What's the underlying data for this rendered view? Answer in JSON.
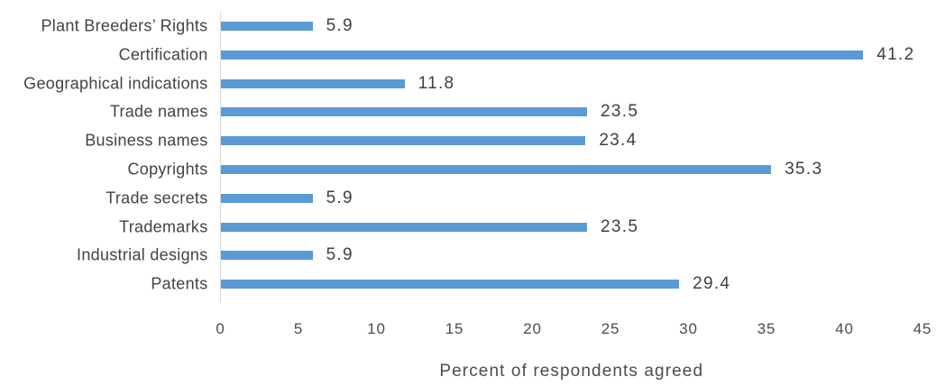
{
  "chart_data": {
    "type": "bar",
    "orientation": "horizontal",
    "categories": [
      "Plant Breeders’ Rights",
      "Certification",
      "Geographical indications",
      "Trade names",
      "Business names",
      "Copyrights",
      "Trade secrets",
      "Trademarks",
      "Industrial designs",
      "Patents"
    ],
    "values": [
      5.9,
      41.2,
      11.8,
      23.5,
      23.4,
      35.3,
      5.9,
      23.5,
      5.9,
      29.4
    ],
    "value_labels": [
      "5.9",
      "41.2",
      "11.8",
      "23.5",
      "23.4",
      "35.3",
      "5.9",
      "23.5",
      "5.9",
      "29.4"
    ],
    "xlabel": "Percent of respondents agreed",
    "xlim": [
      0,
      45
    ],
    "xticks": [
      0,
      5,
      10,
      15,
      20,
      25,
      30,
      35,
      40,
      45
    ],
    "grid": false,
    "legend": false
  },
  "colors": {
    "bar": "#5B9BD5",
    "label_text": "#434343",
    "value_text": "#404040",
    "tick_text": "#4d4d4d",
    "axis_line": "#D9D9D9"
  }
}
